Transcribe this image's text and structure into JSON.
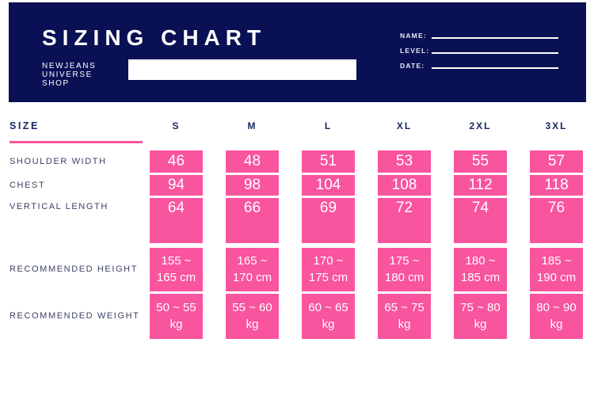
{
  "header": {
    "title": "SIZING CHART",
    "shop_name_lines": [
      "NEWJEANS",
      "UNIVERSE",
      "SHOP"
    ],
    "product_input": {
      "value": "",
      "placeholder": ""
    },
    "fields": [
      {
        "label": "NAME:"
      },
      {
        "label": "LEVEL:"
      },
      {
        "label": "DATE:"
      }
    ]
  },
  "table": {
    "size_header": "SIZE",
    "columns": [
      "S",
      "M",
      "L",
      "XL",
      "2XL",
      "3XL"
    ],
    "rows": [
      {
        "label": "SHOULDER WIDTH",
        "values": [
          "46",
          "48",
          "51",
          "53",
          "55",
          "57"
        ]
      },
      {
        "label": "CHEST",
        "values": [
          "94",
          "98",
          "104",
          "108",
          "112",
          "118"
        ]
      },
      {
        "label": "VERTICAL LENGTH",
        "values": [
          "64",
          "66",
          "69",
          "72",
          "74",
          "76"
        ]
      },
      {
        "label": "RECOMMENDED HEIGHT",
        "values": [
          "155 ~ 165 cm",
          "165 ~ 170 cm",
          "170 ~ 175 cm",
          "175 ~ 180 cm",
          "180 ~ 185 cm",
          "185 ~ 190 cm"
        ]
      },
      {
        "label": "RECOMMENDED WEIGHT",
        "values": [
          "50 ~ 55 kg",
          "55 ~ 60 kg",
          "60 ~ 65 kg",
          "65 ~ 75 kg",
          "75 ~ 80 kg",
          "80 ~ 90 kg"
        ]
      }
    ]
  },
  "colors": {
    "banner_navy": "#0a1054",
    "cell_pink": "#f9549e",
    "heading_navy": "#14275f",
    "row_label_slate": "#3d4266"
  }
}
